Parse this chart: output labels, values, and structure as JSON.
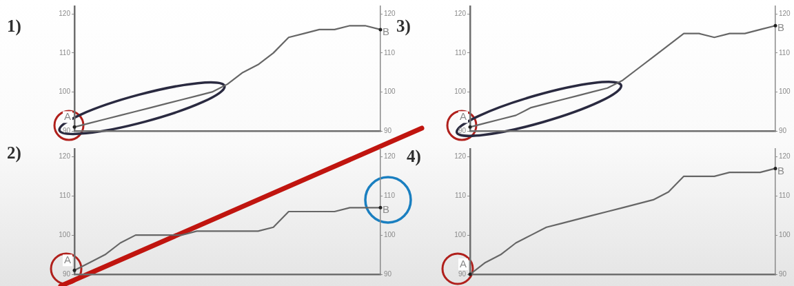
{
  "chart_data": [
    {
      "type": "line",
      "title": "1)",
      "categories": [
        null,
        null,
        null,
        null,
        null,
        null,
        null,
        null,
        null,
        null,
        null,
        null,
        null,
        null,
        null,
        null,
        null,
        null,
        null,
        null,
        null
      ],
      "series": [
        {
          "color": "#666666",
          "values": [
            91,
            92,
            93,
            94,
            95,
            96,
            97,
            98,
            99,
            100,
            102,
            105,
            107,
            110,
            114,
            115,
            116,
            116,
            117,
            117,
            116
          ],
          "value_labels": [
            "A",
            null,
            null,
            null,
            null,
            null,
            null,
            null,
            null,
            null,
            null,
            null,
            null,
            null,
            null,
            null,
            null,
            null,
            null,
            null,
            "B"
          ]
        }
      ],
      "ylim": [
        90,
        122
      ],
      "yticks": [
        90,
        100,
        110,
        120
      ],
      "y2lim": [
        90,
        122
      ],
      "y2ticks": [
        90,
        100,
        110,
        120
      ],
      "tick_labels": "y",
      "grid": false,
      "marker": "none"
    },
    {
      "type": "line",
      "title": "3)",
      "categories": [
        null,
        null,
        null,
        null,
        null,
        null,
        null,
        null,
        null,
        null,
        null,
        null,
        null,
        null,
        null,
        null,
        null,
        null,
        null,
        null,
        null
      ],
      "series": [
        {
          "color": "#666666",
          "values": [
            91,
            92,
            93,
            94,
            96,
            97,
            98,
            99,
            100,
            101,
            103,
            106,
            109,
            112,
            115,
            115,
            114,
            115,
            115,
            116,
            117
          ],
          "value_labels": [
            "A",
            null,
            null,
            null,
            null,
            null,
            null,
            null,
            null,
            null,
            null,
            null,
            null,
            null,
            null,
            null,
            null,
            null,
            null,
            null,
            "B"
          ]
        }
      ],
      "ylim": [
        90,
        122
      ],
      "yticks": [
        90,
        100,
        110,
        120
      ],
      "y2lim": [
        90,
        122
      ],
      "y2ticks": [
        90,
        100,
        110,
        120
      ],
      "tick_labels": "y",
      "grid": false,
      "marker": "none"
    },
    {
      "type": "line",
      "title": "2)",
      "categories": [
        null,
        null,
        null,
        null,
        null,
        null,
        null,
        null,
        null,
        null,
        null,
        null,
        null,
        null,
        null,
        null,
        null,
        null,
        null,
        null,
        null
      ],
      "series": [
        {
          "color": "#666666",
          "values": [
            91,
            93,
            95,
            98,
            100,
            100,
            100,
            100,
            101,
            101,
            101,
            101,
            101,
            102,
            106,
            106,
            106,
            106,
            107,
            107,
            107
          ],
          "value_labels": [
            "A",
            null,
            null,
            null,
            null,
            null,
            null,
            null,
            null,
            null,
            null,
            null,
            null,
            null,
            null,
            null,
            null,
            null,
            null,
            null,
            "B"
          ]
        }
      ],
      "ylim": [
        90,
        122
      ],
      "yticks": [
        90,
        100,
        110,
        120
      ],
      "y2lim": [
        90,
        122
      ],
      "y2ticks": [
        90,
        100,
        110,
        120
      ],
      "tick_labels": "y",
      "grid": false,
      "marker": "none"
    },
    {
      "type": "line",
      "title": "4)",
      "categories": [
        null,
        null,
        null,
        null,
        null,
        null,
        null,
        null,
        null,
        null,
        null,
        null,
        null,
        null,
        null,
        null,
        null,
        null,
        null,
        null,
        null
      ],
      "series": [
        {
          "color": "#666666",
          "values": [
            90,
            93,
            95,
            98,
            100,
            102,
            103,
            104,
            105,
            106,
            107,
            108,
            109,
            111,
            115,
            115,
            115,
            116,
            116,
            116,
            117
          ],
          "value_labels": [
            "A",
            null,
            null,
            null,
            null,
            null,
            null,
            null,
            null,
            null,
            null,
            null,
            null,
            null,
            null,
            null,
            null,
            null,
            null,
            null,
            "B"
          ]
        }
      ],
      "ylim": [
        90,
        122
      ],
      "yticks": [
        90,
        100,
        110,
        120
      ],
      "y2lim": [
        90,
        122
      ],
      "y2ticks": [
        90,
        100,
        110,
        120
      ],
      "tick_labels": "y",
      "grid": false,
      "marker": "none"
    }
  ]
}
